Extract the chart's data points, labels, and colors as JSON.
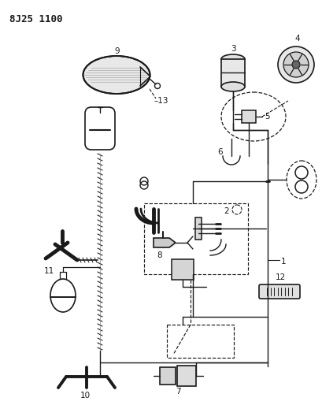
{
  "title": "8J25 1100",
  "bg": "#ffffff",
  "lc": "#1a1a1a",
  "lw": 1.0,
  "fs": 7.5,
  "fig_w": 4.09,
  "fig_h": 5.33,
  "dpi": 100
}
